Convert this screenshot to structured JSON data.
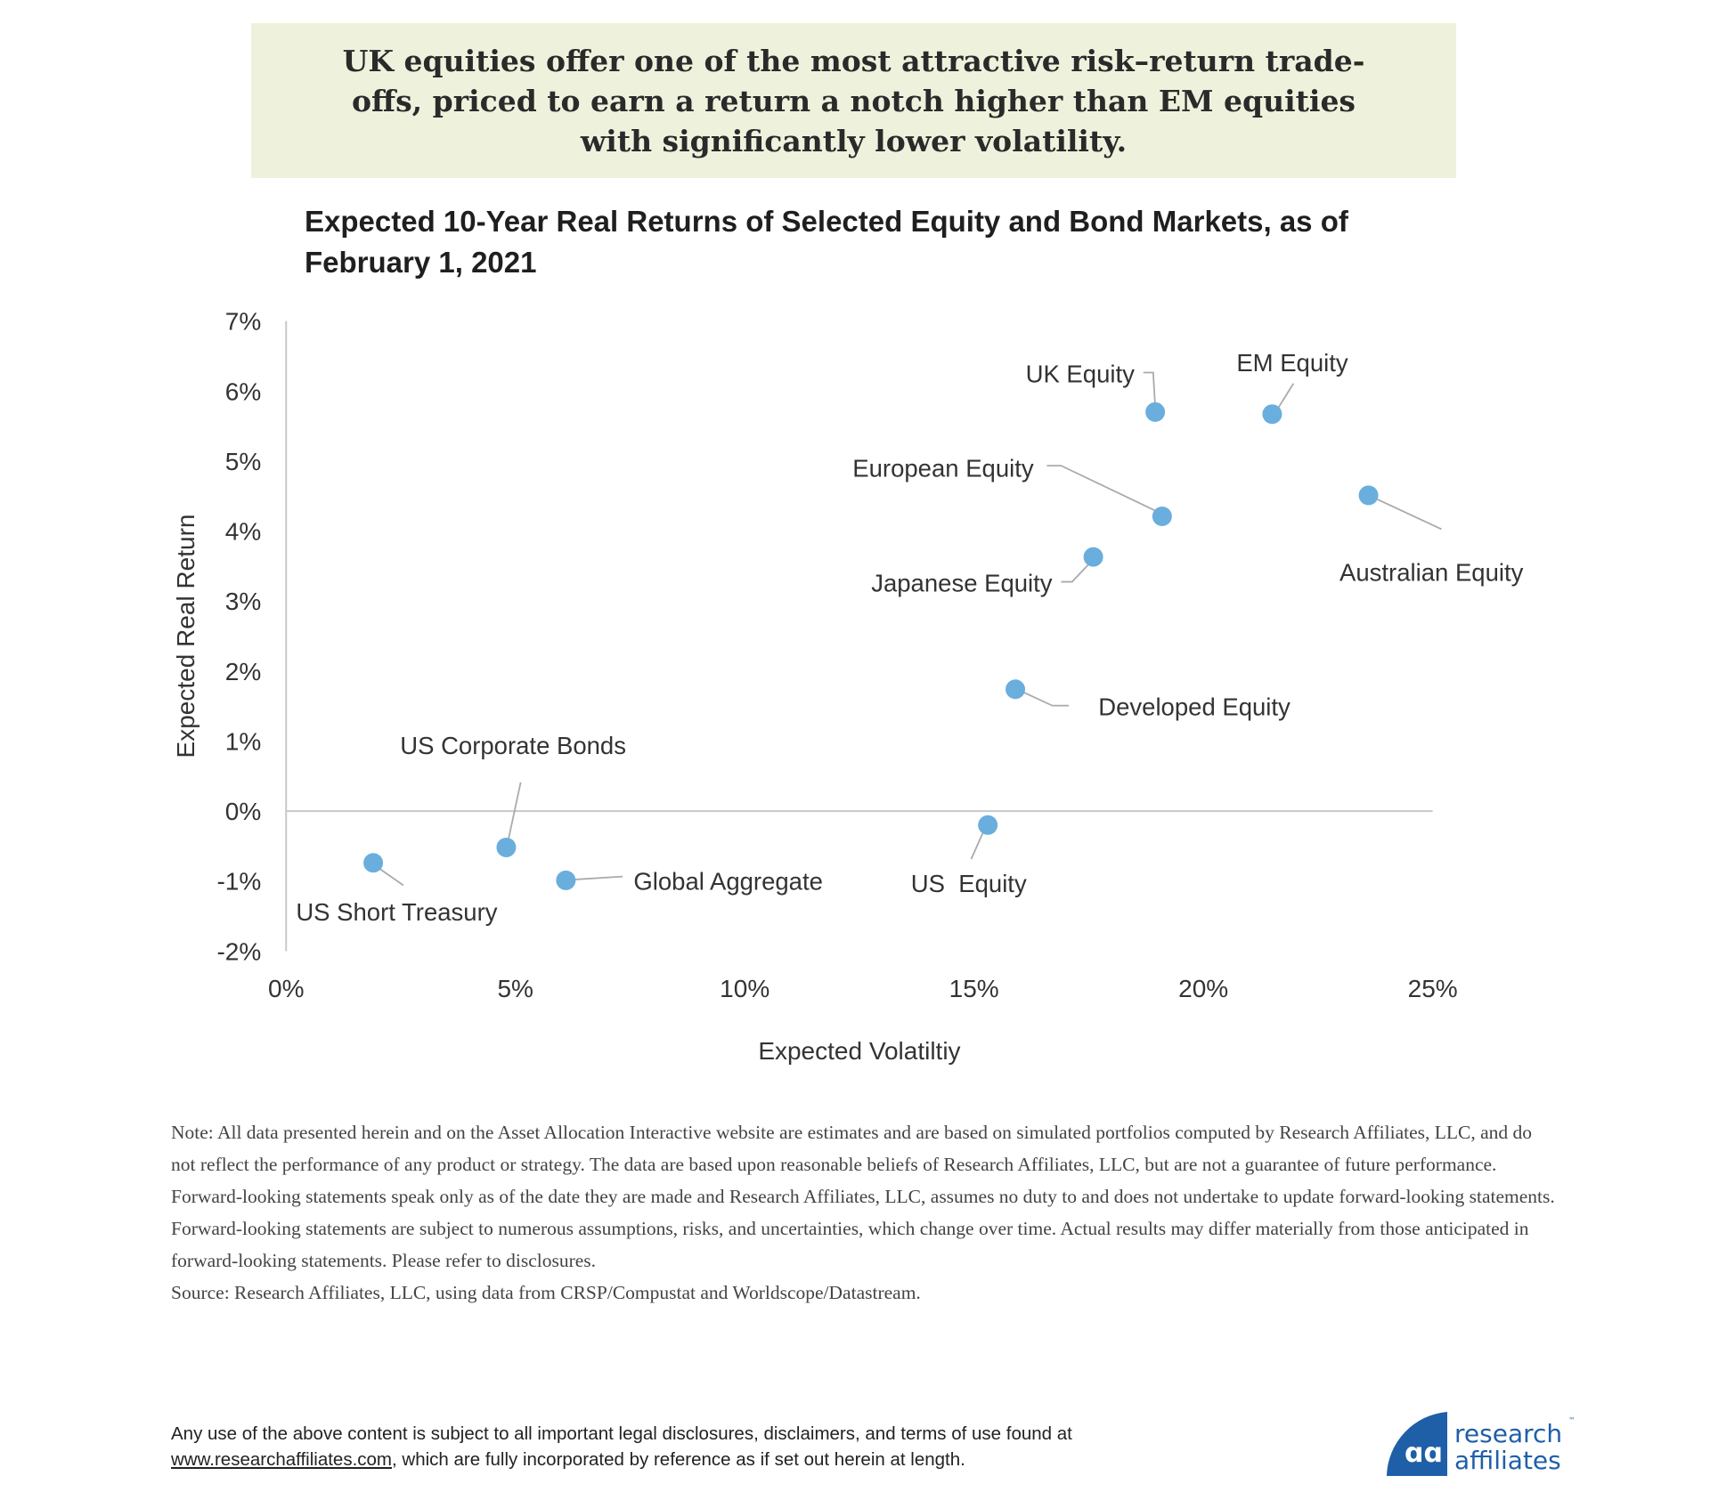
{
  "banner": {
    "text": "UK equities offer one of the most attractive risk–return trade-offs, priced to earn a return a notch higher than EM equities with significantly lower volatility."
  },
  "chart_data": {
    "type": "scatter",
    "title": "Expected 10-Year Real Returns of Selected Equity and Bond Markets, as of February 1, 2021",
    "xlabel": "Expected Volatiltiy",
    "ylabel": "Expected Real Return",
    "xlim": [
      0,
      25
    ],
    "ylim": [
      -2,
      7
    ],
    "x_ticks": [
      "0%",
      "5%",
      "10%",
      "15%",
      "20%",
      "25%"
    ],
    "y_ticks": [
      "7%",
      "6%",
      "5%",
      "4%",
      "3%",
      "2%",
      "1%",
      "0%",
      "-1%",
      "-2%"
    ],
    "grid": false,
    "marker_color": "#6aaedd",
    "points": [
      {
        "label": "US Short Treasury",
        "x": 1.9,
        "y": -0.74
      },
      {
        "label": "US Corporate Bonds",
        "x": 4.8,
        "y": -0.52
      },
      {
        "label": "Global Aggregate",
        "x": 6.1,
        "y": -0.99
      },
      {
        "label": "US  Equity",
        "x": 15.3,
        "y": -0.2
      },
      {
        "label": "Developed Equity",
        "x": 15.9,
        "y": 1.74
      },
      {
        "label": "Japanese Equity",
        "x": 17.6,
        "y": 3.63
      },
      {
        "label": "European Equity",
        "x": 19.1,
        "y": 4.21
      },
      {
        "label": "UK Equity",
        "x": 18.95,
        "y": 5.7
      },
      {
        "label": "EM Equity",
        "x": 21.5,
        "y": 5.67
      },
      {
        "label": "Australian Equity",
        "x": 23.6,
        "y": 4.51
      }
    ]
  },
  "note": "Note: All data presented herein and on the Asset Allocation Interactive website are estimates and are based on simulated portfolios computed by Research Affiliates, LLC, and do not reflect the performance of any product or strategy. The data are based upon reasonable beliefs of Research Affiliates, LLC, but are not a guarantee of future performance. Forward-looking statements speak only as of the date they are made and Research Affiliates, LLC, assumes no duty to and does not undertake to update forward-looking statements. Forward-looking statements are subject to numerous assumptions, risks, and uncertainties, which change over time. Actual results may differ materially from those anticipated in forward-looking statements. Please refer to disclosures.",
  "source": "Source: Research Affiliates, LLC, using data from CRSP/Compustat and Worldscope/Datastream.",
  "legal": {
    "line1": "Any use of the above content is subject to all important legal disclosures, disclaimers, and terms of use found at",
    "link": "www.researchaffiliates.com",
    "line2_rest": ", which are fully incorporated by reference as if set out herein at length."
  },
  "logo": {
    "line1": "research",
    "line2": "affiliates",
    "tm": "™",
    "color": "#1f5fa8"
  }
}
